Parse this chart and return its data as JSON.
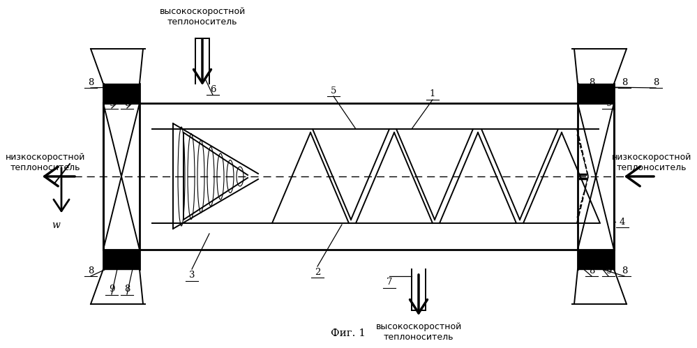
{
  "bg_color": "#ffffff",
  "line_color": "#000000",
  "title": "Фиг. 1",
  "label_top_inlet": "высокоскоростной\nтеплоноситель",
  "label_bottom_outlet": "высокоскоростной\nтеплоноситель",
  "label_left": "низкоскоростной\nтеплоноситель",
  "label_right": "низкоскоростной\nтеплоноситель",
  "label_w": "w"
}
